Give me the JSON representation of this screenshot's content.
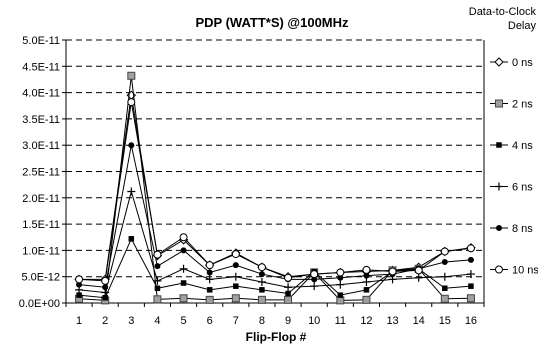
{
  "chart_data": {
    "type": "line",
    "title": "PDP (WATT*S) @100MHz",
    "xlabel": "Flip-Flop #",
    "ylabel": "",
    "x": [
      1,
      2,
      3,
      4,
      5,
      6,
      7,
      8,
      9,
      10,
      11,
      12,
      13,
      14,
      15,
      16
    ],
    "ylim": [
      0,
      5e-11
    ],
    "y_ticks": [
      "0.0E+00",
      "5.0E-12",
      "1.0E-11",
      "1.5E-11",
      "2.0E-11",
      "2.5E-11",
      "3.0E-11",
      "3.5E-11",
      "4.0E-11",
      "4.5E-11",
      "5.0E-11"
    ],
    "y_tick_values": [
      0,
      5e-12,
      1e-11,
      1.5e-11,
      2e-11,
      2.5e-11,
      3e-11,
      3.5e-11,
      4e-11,
      4.5e-11,
      5e-11
    ],
    "grid": "horizontal-dashed",
    "legend": {
      "title_line1": "Data-to-Clock",
      "title_line2": "Delay",
      "placement": "right"
    },
    "series": [
      {
        "name": "0 ns",
        "marker": "diamond-open",
        "values": [
          4.5e-12,
          4.5e-12,
          3.95e-11,
          9e-12,
          1.2e-11,
          7.2e-12,
          9.5e-12,
          6.8e-12,
          5e-12,
          5.5e-12,
          5.8e-12,
          6e-12,
          6.2e-12,
          6.8e-12,
          9.8e-12,
          1.05e-11
        ]
      },
      {
        "name": "2 ns",
        "marker": "square-gray",
        "values": [
          8e-13,
          5e-13,
          4.32e-11,
          7e-13,
          9e-13,
          6e-13,
          9e-13,
          6e-13,
          6e-13,
          5.8e-12,
          5e-13,
          6e-13,
          6.2e-12,
          6.5e-12,
          8e-13,
          9e-13
        ]
      },
      {
        "name": "4 ns",
        "marker": "square-small",
        "values": [
          1.5e-12,
          1e-12,
          1.22e-11,
          2.8e-12,
          3.8e-12,
          2.5e-12,
          3.2e-12,
          2.5e-12,
          1.8e-12,
          6e-12,
          1.5e-12,
          2.5e-12,
          6e-12,
          6.5e-12,
          2.8e-12,
          3.2e-12
        ]
      },
      {
        "name": "6 ns",
        "marker": "plus",
        "values": [
          2.5e-12,
          2e-12,
          2.12e-11,
          4.2e-12,
          6.5e-12,
          4.5e-12,
          5e-12,
          4e-12,
          3e-12,
          3.2e-12,
          3.5e-12,
          4e-12,
          4.5e-12,
          4.8e-12,
          5e-12,
          5.5e-12
        ]
      },
      {
        "name": "8 ns",
        "marker": "circle-filled",
        "values": [
          3.5e-12,
          3e-12,
          3e-11,
          7e-12,
          1e-11,
          5.8e-12,
          7.2e-12,
          5.5e-12,
          4.5e-12,
          4.5e-12,
          4.8e-12,
          5.2e-12,
          5.5e-12,
          6.5e-12,
          7.8e-12,
          8.2e-12
        ]
      },
      {
        "name": "10 ns",
        "marker": "circle-open",
        "values": [
          4.5e-12,
          4.2e-12,
          3.82e-11,
          9.2e-12,
          1.25e-11,
          7.2e-12,
          9.3e-12,
          6.8e-12,
          4.8e-12,
          5.5e-12,
          5.8e-12,
          6.3e-12,
          6e-12,
          6.2e-12,
          9.8e-12,
          1.04e-11
        ]
      }
    ]
  }
}
